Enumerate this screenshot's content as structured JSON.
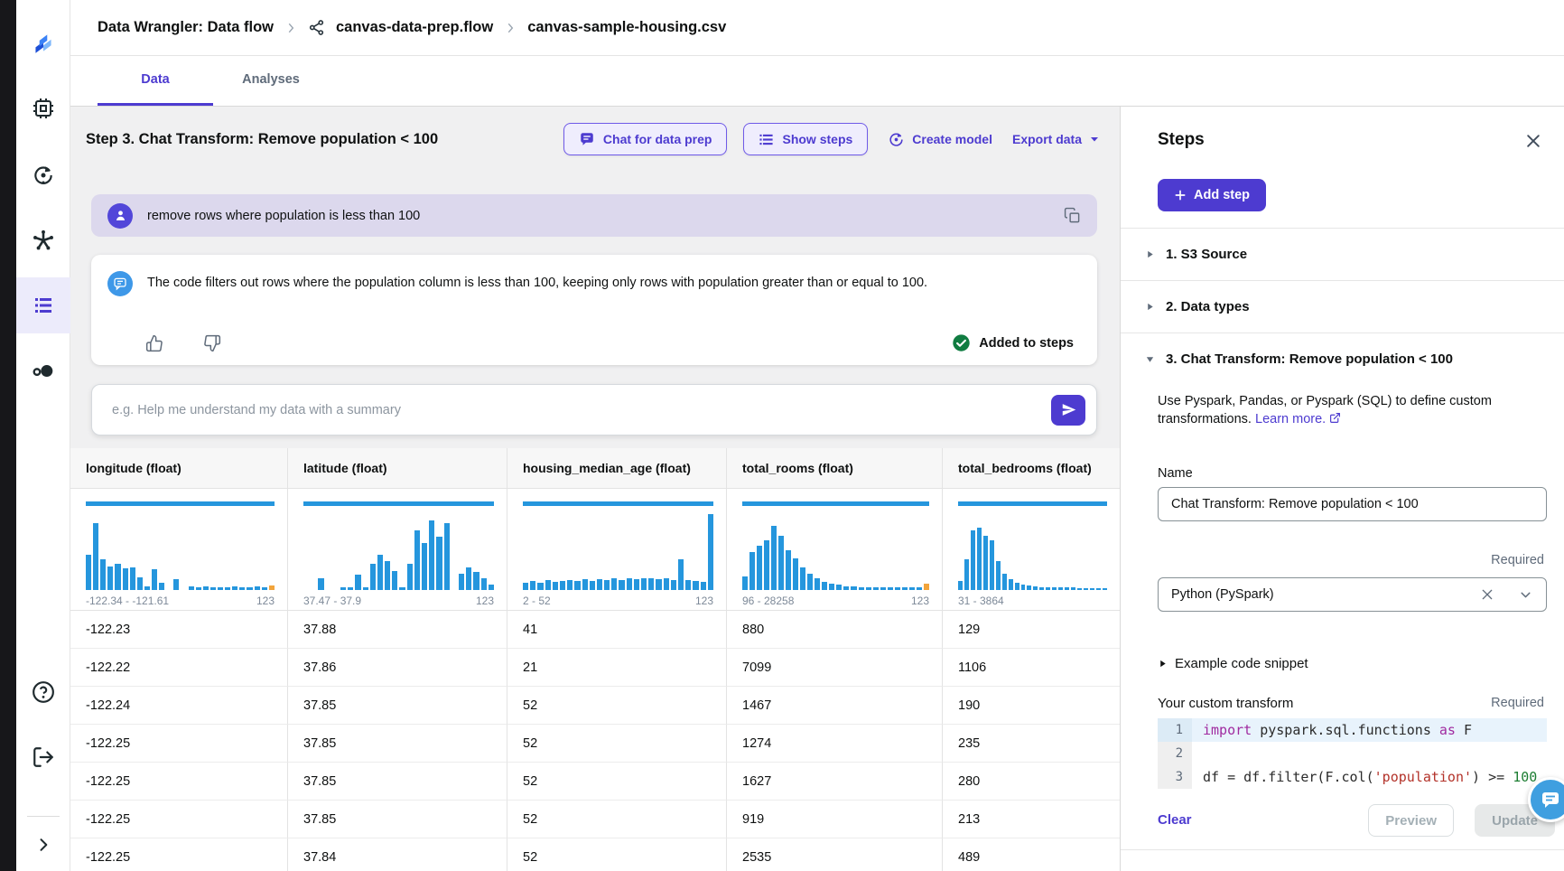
{
  "breadcrumb": {
    "items": [
      "Data Wrangler: Data flow",
      "canvas-data-prep.flow",
      "canvas-sample-housing.csv"
    ]
  },
  "tabs": [
    {
      "label": "Data",
      "active": true
    },
    {
      "label": "Analyses",
      "active": false
    }
  ],
  "toolbar": {
    "step_title": "Step 3. Chat Transform: Remove population < 100",
    "chat_for_data_prep": "Chat for data prep",
    "show_steps": "Show steps",
    "create_model": "Create model",
    "export_data": "Export data"
  },
  "chat": {
    "user_message": "remove rows where population is less than 100",
    "assistant_message": "The code filters out rows where the population column is less than 100, keeping only rows with population greater than or equal to 100.",
    "added_to_steps": "Added to steps",
    "input_placeholder": "e.g. Help me understand my data with a summary"
  },
  "table": {
    "columns": [
      {
        "header": "longitude (float)",
        "range": "-122.34 - -121.61",
        "count": "123",
        "orange_last": true,
        "bars": [
          46,
          88,
          40,
          31,
          34,
          29,
          30,
          17,
          5,
          27,
          10,
          0,
          14,
          0,
          5,
          4,
          5,
          4,
          4,
          4,
          5,
          4,
          4,
          5,
          4,
          6
        ]
      },
      {
        "header": "latitude (float)",
        "range": "37.47 - 37.9",
        "count": "123",
        "orange_last": false,
        "bars": [
          0,
          0,
          16,
          0,
          0,
          3,
          4,
          20,
          3,
          35,
          46,
          38,
          25,
          4,
          34,
          78,
          62,
          92,
          70,
          88,
          0,
          22,
          30,
          24,
          15,
          7
        ]
      },
      {
        "header": "housing_median_age (float)",
        "range": "2 - 52",
        "count": "123",
        "orange_last": false,
        "bars": [
          10,
          12,
          10,
          13,
          11,
          12,
          13,
          12,
          14,
          12,
          14,
          13,
          15,
          13,
          15,
          14,
          16,
          15,
          14,
          15,
          13,
          40,
          13,
          12,
          11,
          100
        ]
      },
      {
        "header": "total_rooms (float)",
        "range": "96 - 28258",
        "count": "123",
        "orange_last": true,
        "bars": [
          18,
          50,
          58,
          66,
          85,
          72,
          52,
          42,
          30,
          22,
          16,
          11,
          8,
          7,
          5,
          5,
          4,
          4,
          3,
          3,
          3,
          3,
          3,
          3,
          3,
          8
        ]
      },
      {
        "header": "total_bedrooms (float)",
        "range": "31 - 3864",
        "count": "",
        "orange_last": false,
        "bars": [
          12,
          40,
          78,
          82,
          72,
          66,
          38,
          22,
          14,
          10,
          7,
          6,
          5,
          4,
          4,
          3,
          3,
          3,
          3,
          2,
          2,
          2,
          2,
          2
        ]
      }
    ],
    "rows": [
      [
        "-122.23",
        "37.88",
        "41",
        "880",
        "129"
      ],
      [
        "-122.22",
        "37.86",
        "21",
        "7099",
        "1106"
      ],
      [
        "-122.24",
        "37.85",
        "52",
        "1467",
        "190"
      ],
      [
        "-122.25",
        "37.85",
        "52",
        "1274",
        "235"
      ],
      [
        "-122.25",
        "37.85",
        "52",
        "1627",
        "280"
      ],
      [
        "-122.25",
        "37.85",
        "52",
        "919",
        "213"
      ],
      [
        "-122.25",
        "37.84",
        "52",
        "2535",
        "489"
      ]
    ]
  },
  "steps_panel": {
    "title": "Steps",
    "add_step": "Add step",
    "items": [
      {
        "label": "1. S3 Source",
        "expanded": false
      },
      {
        "label": "2. Data types",
        "expanded": false
      },
      {
        "label": "3. Chat Transform: Remove population < 100",
        "expanded": true
      }
    ],
    "description": "Use Pyspark, Pandas, or Pyspark (SQL) to define custom transformations.",
    "learn_more": "Learn more.",
    "name_label": "Name",
    "name_value": "Chat Transform: Remove population < 100",
    "required": "Required",
    "language_value": "Python (PySpark)",
    "example_snippet": "Example code snippet",
    "custom_transform_label": "Your custom transform",
    "code_lines": [
      {
        "num": "1",
        "highlight": true,
        "tokens": [
          {
            "t": "import",
            "c": "kw"
          },
          {
            "t": " pyspark.sql.functions ",
            "c": "pl"
          },
          {
            "t": "as",
            "c": "kw"
          },
          {
            "t": " F",
            "c": "pl"
          }
        ]
      },
      {
        "num": "2",
        "highlight": false,
        "tokens": []
      },
      {
        "num": "3",
        "highlight": false,
        "tokens": [
          {
            "t": "df = df.filter(F.col(",
            "c": "pl"
          },
          {
            "t": "'population'",
            "c": "str"
          },
          {
            "t": ") >= ",
            "c": "pl"
          },
          {
            "t": "100",
            "c": "num"
          }
        ]
      }
    ],
    "clear": "Clear",
    "preview": "Preview",
    "update": "Update"
  },
  "colors": {
    "accent": "#4d3bd0",
    "histogram_blue": "#2596dd",
    "flag_orange": "#f2a43b",
    "success_green": "#107c41",
    "fab_blue": "#3f9fe0"
  }
}
